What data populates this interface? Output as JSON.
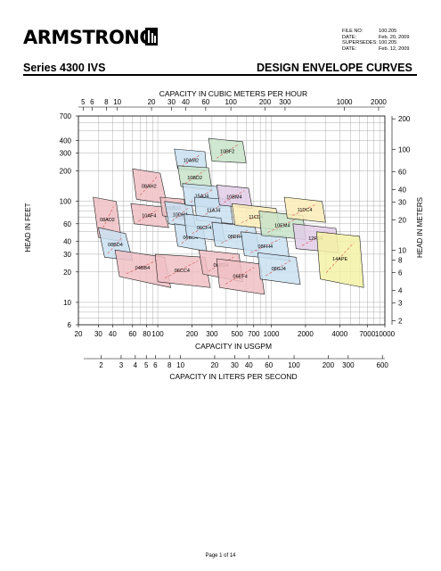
{
  "header": {
    "brand": "ARMSTRONG",
    "meta": [
      {
        "label": "FILE NO:",
        "value": "100.205"
      },
      {
        "label": "DATE:",
        "value": "Feb. 20, 2009"
      },
      {
        "label": "SUPERSEDES:",
        "value": "100.205"
      },
      {
        "label": "DATE:",
        "value": "Feb. 12, 2009"
      }
    ],
    "series": "Series 4300 IVS",
    "title": "DESIGN ENVELOPE CURVES"
  },
  "footer": {
    "page": "Page 1 of 14"
  },
  "chart_data": {
    "type": "area",
    "title": "",
    "xlabel": "CAPACITY IN USGPM",
    "ylabel": "HEAD IN FEET",
    "top_axis_label": "CAPACITY IN CUBIC METERS PER HOUR",
    "bottom2_axis_label": "CAPACITY IN LITERS PER SECOND",
    "right_axis_label": "HEAD IN METERS",
    "x_scale": "log",
    "y_scale": "log",
    "xlim": [
      20,
      10000
    ],
    "ylim": [
      6,
      700
    ],
    "grid": true,
    "x_ticks": [
      "20",
      "30",
      "40",
      "60",
      "80",
      "100",
      "200",
      "300",
      "500",
      "700",
      "1000",
      "2000",
      "4000",
      "7000",
      "10000"
    ],
    "y_ticks": [
      "6",
      "10",
      "20",
      "30",
      "40",
      "60",
      "100",
      "200",
      "300",
      "400",
      "700"
    ],
    "top_ticks": [
      "5",
      "6",
      "8",
      "10",
      "20",
      "30",
      "40",
      "60",
      "100",
      "200",
      "300",
      "1000",
      "2000"
    ],
    "lps_ticks": [
      "2",
      "3",
      "4",
      "5",
      "6",
      "8",
      "10",
      "20",
      "30",
      "40",
      "60",
      "100",
      "200",
      "300",
      "600"
    ],
    "meters_ticks": [
      "2",
      "3",
      "4",
      "6",
      "8",
      "10",
      "20",
      "30",
      "40",
      "60",
      "100",
      "200"
    ],
    "series": [
      {
        "name": "08AD2",
        "color": "#f0bfc4",
        "x": [
          27,
          43,
          48,
          30
        ],
        "y": [
          110,
          100,
          40,
          44
        ]
      },
      {
        "name": "08BD4",
        "color": "#c9e1f1",
        "x": [
          30,
          52,
          60,
          34
        ],
        "y": [
          55,
          48,
          26,
          28
        ]
      },
      {
        "name": "04BB4",
        "color": "#f0bfc4",
        "x": [
          42,
          115,
          130,
          46
        ],
        "y": [
          33,
          28,
          14,
          18
        ]
      },
      {
        "name": "08AH2",
        "color": "#f0bfc4",
        "x": [
          60,
          105,
          120,
          65
        ],
        "y": [
          210,
          190,
          95,
          105
        ]
      },
      {
        "name": "10AF4",
        "color": "#f0bfc4",
        "x": [
          58,
          110,
          125,
          62
        ],
        "y": [
          95,
          88,
          55,
          60
        ]
      },
      {
        "name": "06BD2",
        "color": "#f0bfc4",
        "x": [
          105,
          170,
          185,
          110
        ],
        "y": [
          110,
          105,
          65,
          72
        ]
      },
      {
        "name": "10DH4",
        "color": "#c9e1f1",
        "x": [
          115,
          200,
          215,
          125
        ],
        "y": [
          100,
          92,
          55,
          60
        ]
      },
      {
        "name": "06CC4",
        "color": "#f0bfc4",
        "x": [
          95,
          260,
          290,
          100
        ],
        "y": [
          30,
          28,
          14,
          16
        ]
      },
      {
        "name": "06BD4",
        "color": "#c9e1f1",
        "x": [
          140,
          250,
          270,
          150
        ],
        "y": [
          60,
          55,
          32,
          36
        ]
      },
      {
        "name": "10AM2",
        "color": "#c9e1f1",
        "x": [
          140,
          260,
          270,
          150
        ],
        "y": [
          330,
          310,
          200,
          210
        ]
      },
      {
        "name": "10BD2",
        "color": "#c8e3c9",
        "x": [
          150,
          280,
          300,
          160
        ],
        "y": [
          225,
          215,
          130,
          140
        ]
      },
      {
        "name": "15AJ4",
        "color": "#c9e1f1",
        "x": [
          165,
          340,
          360,
          175
        ],
        "y": [
          150,
          140,
          85,
          92
        ]
      },
      {
        "name": "11AJ4",
        "color": "#c9e1f1",
        "x": [
          210,
          430,
          460,
          220
        ],
        "y": [
          110,
          105,
          60,
          65
        ]
      },
      {
        "name": "06CF4",
        "color": "#c9e1f1",
        "x": [
          170,
          360,
          390,
          180
        ],
        "y": [
          75,
          68,
          40,
          45
        ]
      },
      {
        "name": "10BF2",
        "color": "#c8e3c9",
        "x": [
          280,
          560,
          600,
          300
        ],
        "y": [
          420,
          390,
          240,
          250
        ]
      },
      {
        "name": "10BM4",
        "color": "#e2cde8",
        "x": [
          330,
          630,
          680,
          350
        ],
        "y": [
          145,
          135,
          85,
          92
        ]
      },
      {
        "name": "08DH4",
        "color": "#c9e1f1",
        "x": [
          300,
          720,
          780,
          320
        ],
        "y": [
          62,
          56,
          32,
          36
        ]
      },
      {
        "name": "06ED4",
        "color": "#f0bfc4",
        "x": [
          230,
          520,
          560,
          250
        ],
        "y": [
          33,
          30,
          16,
          19
        ]
      },
      {
        "name": "06EF4",
        "color": "#f0bfc4",
        "x": [
          330,
          800,
          870,
          350
        ],
        "y": [
          27,
          24,
          12,
          14
        ]
      },
      {
        "name": "11CL4",
        "color": "#fbedb9",
        "x": [
          450,
          1100,
          1200,
          480
        ],
        "y": [
          95,
          85,
          52,
          58
        ]
      },
      {
        "name": "08FH4",
        "color": "#c9e1f1",
        "x": [
          540,
          1350,
          1450,
          580
        ],
        "y": [
          50,
          45,
          26,
          29
        ]
      },
      {
        "name": "08GJ4",
        "color": "#c9e1f1",
        "x": [
          760,
          1650,
          1800,
          800
        ],
        "y": [
          31,
          28,
          15,
          17
        ]
      },
      {
        "name": "10EM4",
        "color": "#c8e3c9",
        "x": [
          780,
          1900,
          2000,
          820
        ],
        "y": [
          80,
          72,
          42,
          46
        ]
      },
      {
        "name": "11DC4",
        "color": "#fbedb9",
        "x": [
          1300,
          2800,
          3000,
          1380
        ],
        "y": [
          110,
          100,
          62,
          68
        ]
      },
      {
        "name": "12FD6",
        "color": "#e2cde8",
        "x": [
          1550,
          3700,
          3900,
          1650
        ],
        "y": [
          60,
          54,
          31,
          34
        ]
      },
      {
        "name": "14APE",
        "color": "#f4f2a6",
        "x": [
          2500,
          6000,
          6500,
          2700
        ],
        "y": [
          50,
          45,
          14,
          17
        ]
      }
    ]
  }
}
